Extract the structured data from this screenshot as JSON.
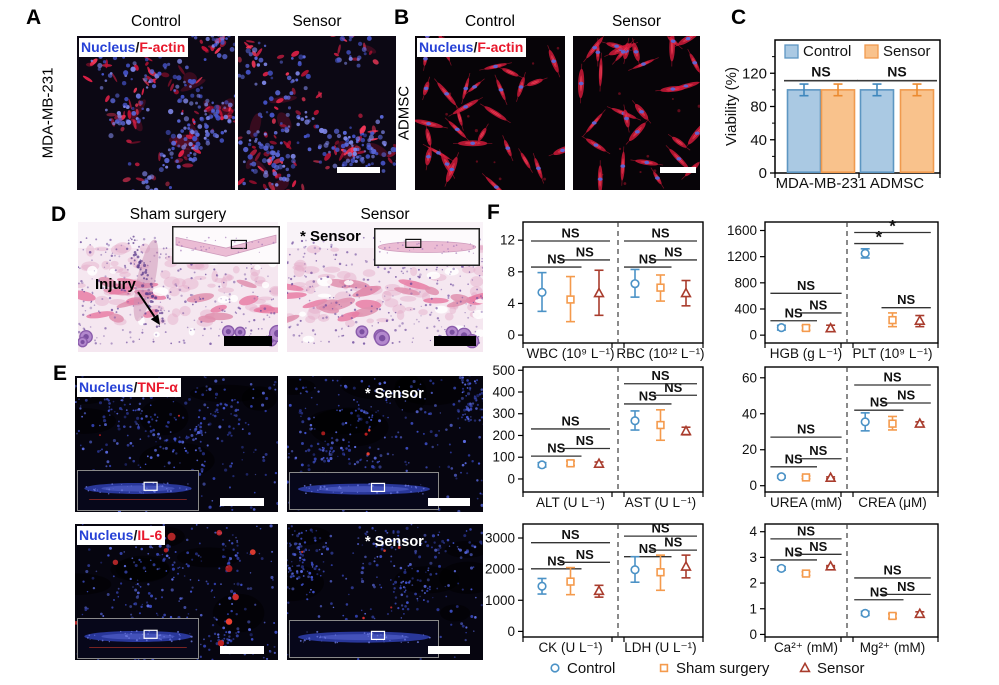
{
  "accent_colors": {
    "nucleus_blue": "#2742d6",
    "stain_red": "#e8182c",
    "control_blue": "#4b92c6",
    "sham_orange": "#f49a4c",
    "sensor_red": "#a93c2d"
  },
  "panels": {
    "A": {
      "label": "A",
      "col_headers": [
        "Control",
        "Sensor"
      ],
      "row_label": "MDA-MB-231",
      "overlay": {
        "nucleus": "Nucleus",
        "sep": "/",
        "marker": "F-actin"
      }
    },
    "B": {
      "label": "B",
      "col_headers": [
        "Control",
        "Sensor"
      ],
      "row_label": "ADMSC",
      "overlay": {
        "nucleus": "Nucleus",
        "sep": "/",
        "marker": "F-actin"
      }
    },
    "C": {
      "label": "C"
    },
    "D": {
      "label": "D",
      "col_headers": [
        "Sham surgery",
        "Sensor"
      ],
      "injury_label": "Injury",
      "sensor_annotation": "* Sensor"
    },
    "E": {
      "label": "E",
      "overlays": [
        {
          "nucleus": "Nucleus",
          "sep": "/",
          "marker": "TNF-α"
        },
        {
          "nucleus": "Nucleus",
          "sep": "/",
          "marker": "IL-6"
        }
      ],
      "sensor_annotation": "* Sensor"
    },
    "F": {
      "label": "F"
    }
  },
  "chart_data": [
    {
      "panel": "C",
      "type": "bar",
      "ylabel": "Viability (%)",
      "yticks": [
        0,
        40,
        80,
        120
      ],
      "ylim": [
        0,
        160
      ],
      "categories": [
        "MDA-MB-231",
        "ADMSC"
      ],
      "series": [
        {
          "name": "Control",
          "values": [
            100,
            100
          ],
          "errors": [
            7,
            7
          ]
        },
        {
          "name": "Sensor",
          "values": [
            100,
            100
          ],
          "errors": [
            7,
            7
          ]
        }
      ],
      "significance": [
        {
          "group": 0,
          "label": "NS",
          "y": 111
        },
        {
          "group": 1,
          "label": "NS",
          "y": 111
        }
      ],
      "legend": [
        "Control",
        "Sensor"
      ],
      "legend_position": "top-inside",
      "colors": {
        "Control": {
          "fill": "#aac9e3",
          "stroke": "#5d96c2",
          "error": "#3f87bd"
        },
        "Sensor": {
          "fill": "#f9c28c",
          "stroke": "#f09a4e",
          "error": "#ec8a30"
        }
      }
    },
    {
      "panel": "F",
      "type": "errorbar-grid",
      "legend": [
        {
          "name": "Control",
          "marker": "circle",
          "color": "#4b92c6"
        },
        {
          "name": "Sham surgery",
          "marker": "square",
          "color": "#f49a4c"
        },
        {
          "name": "Sensor",
          "marker": "triangle",
          "color": "#a93c2d"
        }
      ],
      "subplots": [
        {
          "row": 0,
          "col": 0,
          "yticks": [
            0,
            4,
            8,
            12
          ],
          "ylim": [
            -1,
            14.3
          ],
          "groups": [
            {
              "xlabel": "WBC (10⁹ L⁻¹)",
              "values": [
                5.4,
                4.5,
                5.3
              ],
              "lo": [
                3.0,
                1.7,
                2.5
              ],
              "hi": [
                7.9,
                7.4,
                8.2
              ],
              "sig": [
                {
                  "a": 0,
                  "b": 1,
                  "label": "NS",
                  "y": 8.6
                },
                {
                  "a": 1,
                  "b": 2,
                  "label": "NS",
                  "y": 9.5
                },
                {
                  "a": 0,
                  "b": 2,
                  "label": "NS",
                  "y": 11.9
                }
              ]
            },
            {
              "xlabel": "RBC (10¹² L⁻¹)",
              "values": [
                6.5,
                6.0,
                5.3
              ],
              "lo": [
                4.8,
                4.3,
                3.7
              ],
              "hi": [
                8.3,
                7.6,
                6.9
              ],
              "sig": [
                {
                  "a": 0,
                  "b": 1,
                  "label": "NS",
                  "y": 8.6
                },
                {
                  "a": 1,
                  "b": 2,
                  "label": "NS",
                  "y": 9.5
                },
                {
                  "a": 0,
                  "b": 2,
                  "label": "NS",
                  "y": 11.9
                }
              ]
            }
          ]
        },
        {
          "row": 0,
          "col": 1,
          "yticks": [
            0,
            400,
            800,
            1200,
            1600
          ],
          "ylim": [
            -120,
            1730
          ],
          "groups": [
            {
              "xlabel": "HGB (g L⁻¹)",
              "values": [
                115,
                110,
                105
              ],
              "lo": [
                78,
                75,
                55
              ],
              "hi": [
                150,
                145,
                152
              ],
              "sig": [
                {
                  "a": 0,
                  "b": 1,
                  "label": "NS",
                  "y": 220
                },
                {
                  "a": 1,
                  "b": 2,
                  "label": "NS",
                  "y": 340
                },
                {
                  "a": 0,
                  "b": 2,
                  "label": "NS",
                  "y": 640
                }
              ]
            },
            {
              "xlabel": "PLT (10⁹ L⁻¹)",
              "values": [
                1250,
                230,
                220
              ],
              "lo": [
                1180,
                130,
                130
              ],
              "hi": [
                1320,
                340,
                300
              ],
              "sig": [
                {
                  "a": 1,
                  "b": 2,
                  "label": "NS",
                  "y": 420
                },
                {
                  "a": 0,
                  "b": 1,
                  "label": "*",
                  "y": 1400
                },
                {
                  "a": 0,
                  "b": 2,
                  "label": "*",
                  "y": 1570
                }
              ]
            }
          ]
        },
        {
          "row": 1,
          "col": 0,
          "yticks": [
            0,
            100,
            200,
            300,
            400,
            500
          ],
          "ylim": [
            -60,
            515
          ],
          "groups": [
            {
              "xlabel": "ALT (U L⁻¹)",
              "values": [
                65,
                72,
                70
              ],
              "lo": [
                55,
                62,
                62
              ],
              "hi": [
                75,
                82,
                78
              ],
              "sig": [
                {
                  "a": 0,
                  "b": 1,
                  "label": "NS",
                  "y": 105
                },
                {
                  "a": 1,
                  "b": 2,
                  "label": "NS",
                  "y": 140
                },
                {
                  "a": 0,
                  "b": 2,
                  "label": "NS",
                  "y": 230
                }
              ]
            },
            {
              "xlabel": "AST (U L⁻¹)",
              "values": [
                268,
                248,
                220
              ],
              "lo": [
                225,
                178,
                203
              ],
              "hi": [
                313,
                318,
                238
              ],
              "sig": [
                {
                  "a": 0,
                  "b": 1,
                  "label": "NS",
                  "y": 345
                },
                {
                  "a": 1,
                  "b": 2,
                  "label": "NS",
                  "y": 385
                },
                {
                  "a": 0,
                  "b": 2,
                  "label": "NS",
                  "y": 438
                }
              ]
            }
          ]
        },
        {
          "row": 1,
          "col": 1,
          "yticks": [
            0,
            20,
            40,
            60
          ],
          "ylim": [
            -3.5,
            66
          ],
          "groups": [
            {
              "xlabel": "UREA (mM)",
              "values": [
                5.0,
                4.6,
                4.4
              ],
              "lo": [
                4.3,
                3.8,
                3.9
              ],
              "hi": [
                5.7,
                5.4,
                4.9
              ],
              "sig": [
                {
                  "a": 0,
                  "b": 1,
                  "label": "NS",
                  "y": 10.5
                },
                {
                  "a": 1,
                  "b": 2,
                  "label": "NS",
                  "y": 15
                },
                {
                  "a": 0,
                  "b": 2,
                  "label": "NS",
                  "y": 27
                }
              ]
            },
            {
              "xlabel": "CREA (μM)",
              "values": [
                35.5,
                34.5,
                34.5
              ],
              "lo": [
                30.5,
                31,
                33.5
              ],
              "hi": [
                40.5,
                38.5,
                35.5
              ],
              "sig": [
                {
                  "a": 0,
                  "b": 1,
                  "label": "NS",
                  "y": 42
                },
                {
                  "a": 1,
                  "b": 2,
                  "label": "NS",
                  "y": 46
                },
                {
                  "a": 0,
                  "b": 2,
                  "label": "NS",
                  "y": 56
                }
              ]
            }
          ]
        },
        {
          "row": 2,
          "col": 0,
          "yticks": [
            0,
            1000,
            2000,
            3000
          ],
          "ylim": [
            -180,
            3450
          ],
          "groups": [
            {
              "xlabel": "CK (U L⁻¹)",
              "values": [
                1450,
                1600,
                1300
              ],
              "lo": [
                1200,
                1180,
                1100
              ],
              "hi": [
                1700,
                2050,
                1480
              ],
              "sig": [
                {
                  "a": 0,
                  "b": 1,
                  "label": "NS",
                  "y": 2010
                },
                {
                  "a": 1,
                  "b": 2,
                  "label": "NS",
                  "y": 2220
                },
                {
                  "a": 0,
                  "b": 2,
                  "label": "NS",
                  "y": 2850
                }
              ]
            },
            {
              "xlabel": "LDH (U L⁻¹)",
              "values": [
                1980,
                1900,
                2080
              ],
              "lo": [
                1580,
                1320,
                1720
              ],
              "hi": [
                2400,
                2450,
                2450
              ],
              "sig": [
                {
                  "a": 0,
                  "b": 1,
                  "label": "NS",
                  "y": 2400
                },
                {
                  "a": 1,
                  "b": 2,
                  "label": "NS",
                  "y": 2610
                },
                {
                  "a": 0,
                  "b": 2,
                  "label": "NS",
                  "y": 3060
                }
              ]
            }
          ]
        },
        {
          "row": 2,
          "col": 1,
          "yticks": [
            0,
            1,
            2,
            3,
            4
          ],
          "ylim": [
            -0.1,
            4.3
          ],
          "groups": [
            {
              "xlabel": "Ca²⁺ (mM)",
              "values": [
                2.57,
                2.37,
                2.65
              ],
              "lo": [
                2.5,
                2.3,
                2.62
              ],
              "hi": [
                2.64,
                2.44,
                2.68
              ],
              "sig": [
                {
                  "a": 0,
                  "b": 1,
                  "label": "NS",
                  "y": 2.9
                },
                {
                  "a": 1,
                  "b": 2,
                  "label": "NS",
                  "y": 3.12
                },
                {
                  "a": 0,
                  "b": 2,
                  "label": "NS",
                  "y": 3.72
                }
              ]
            },
            {
              "xlabel": "Mg²⁺ (mM)",
              "values": [
                0.82,
                0.72,
                0.8
              ],
              "lo": [
                0.74,
                0.63,
                0.72
              ],
              "hi": [
                0.9,
                0.8,
                0.88
              ],
              "sig": [
                {
                  "a": 0,
                  "b": 1,
                  "label": "NS",
                  "y": 1.35
                },
                {
                  "a": 1,
                  "b": 2,
                  "label": "NS",
                  "y": 1.56
                },
                {
                  "a": 0,
                  "b": 2,
                  "label": "NS",
                  "y": 2.2
                }
              ]
            }
          ]
        }
      ]
    }
  ]
}
